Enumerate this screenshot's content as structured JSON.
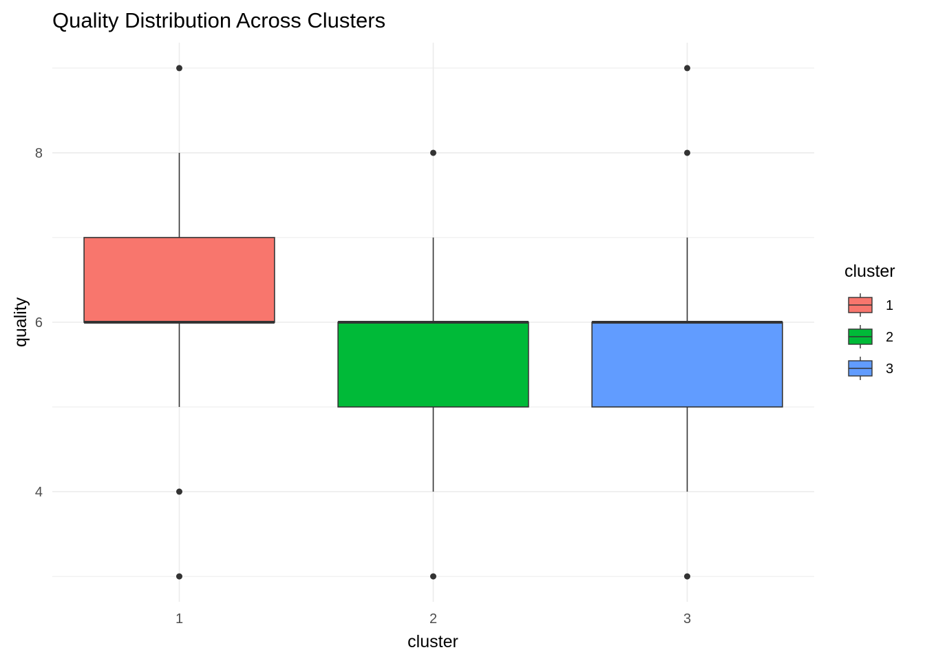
{
  "chart_data": {
    "type": "boxplot",
    "title": "Quality Distribution Across Clusters",
    "xlabel": "cluster",
    "ylabel": "quality",
    "categories": [
      "1",
      "2",
      "3"
    ],
    "ylim": [
      2.7,
      9.3
    ],
    "yticks": [
      4,
      6,
      8
    ],
    "y_minor_gridlines": [
      3,
      5,
      7,
      9
    ],
    "grid": true,
    "boxes": [
      {
        "category": "1",
        "color": "#F8766D",
        "whisker_low": 5,
        "q1": 6,
        "median": 6,
        "q3": 7,
        "whisker_high": 8,
        "outliers": [
          9,
          4,
          3
        ]
      },
      {
        "category": "2",
        "color": "#00BA38",
        "whisker_low": 4,
        "q1": 5,
        "median": 6,
        "q3": 6,
        "whisker_high": 7,
        "outliers": [
          8,
          3
        ]
      },
      {
        "category": "3",
        "color": "#619CFF",
        "whisker_low": 4,
        "q1": 5,
        "median": 6,
        "q3": 6,
        "whisker_high": 7,
        "outliers": [
          9,
          8,
          3
        ]
      }
    ],
    "legend": {
      "title": "cluster",
      "position": "right",
      "entries": [
        {
          "label": "1",
          "color": "#F8766D"
        },
        {
          "label": "2",
          "color": "#00BA38"
        },
        {
          "label": "3",
          "color": "#619CFF"
        }
      ]
    }
  }
}
